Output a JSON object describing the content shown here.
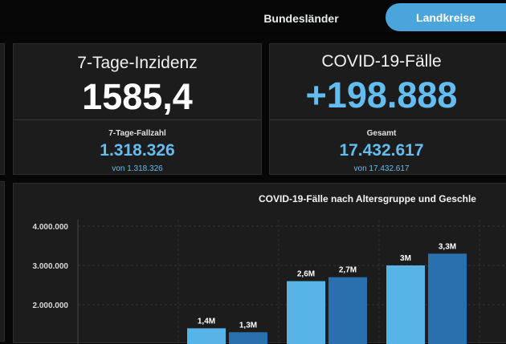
{
  "tabs": {
    "bundeslaender": "Bundesländer",
    "landkreise": "Landkreise"
  },
  "kpi_incidence": {
    "title": "7-Tage-Inzidenz",
    "value": "1585,4",
    "sublabel": "7-Tage-Fallzahl",
    "subvalue": "1.318.326",
    "note": "von 1.318.326"
  },
  "kpi_cases": {
    "title": "COVID-19-Fälle",
    "value": "+198.888",
    "sublabel": "Gesamt",
    "subvalue": "17.432.617",
    "note": "von 17.432.617"
  },
  "colors": {
    "accent": "#4aa6da",
    "value_blue": "#63bdf0",
    "bar_light": "#58b3e6",
    "bar_dark": "#2a6fae",
    "card_bg": "#1b1c1b"
  },
  "chart_data": {
    "type": "bar",
    "title": "COVID-19-Fälle nach Altersgruppe und Geschle",
    "ytick_labels": [
      "4.000.000",
      "3.000.000",
      "2.000.000"
    ],
    "yticks": [
      4000000,
      3000000,
      2000000
    ],
    "ylim": [
      1000000,
      4000000
    ],
    "grid": true,
    "series": [
      {
        "values": [
          1400000,
          2600000,
          3000000
        ],
        "labels": [
          "1,4M",
          "2,6M",
          "3M"
        ],
        "color": "#58b3e6"
      },
      {
        "values": [
          1300000,
          2700000,
          3300000
        ],
        "labels": [
          "1,3M",
          "2,7M",
          "3,3M"
        ],
        "color": "#2a6fae"
      }
    ]
  }
}
